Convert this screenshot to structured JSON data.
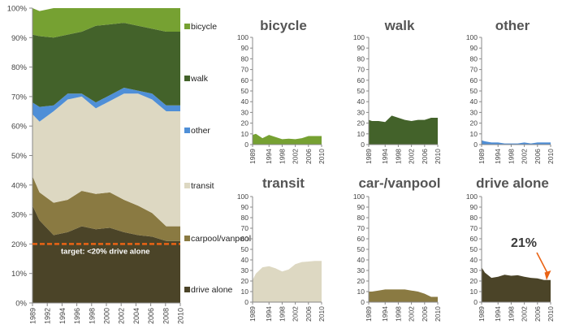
{
  "colors": {
    "bicycle": "#76a132",
    "walk": "#43622a",
    "other": "#4f8fd7",
    "transit": "#ddd8c2",
    "carpool": "#8a7a42",
    "drive_alone": "#4b4428",
    "target_line": "#ea6314",
    "arrow": "#ea6314",
    "axis": "#888888",
    "title": "#555555"
  },
  "main_chart": {
    "legend": {
      "bicycle": "bicycle",
      "walk": "walk",
      "other": "other",
      "transit": "transit",
      "carpool": "carpool/vanpool",
      "drive_alone": "drive alone"
    },
    "target_label": "target: <20% drive alone"
  },
  "annotation": {
    "value_label": "21%"
  },
  "chart_data": [
    {
      "type": "area",
      "stacked": true,
      "x": [
        1989,
        1990,
        1992,
        1994,
        1996,
        1998,
        2000,
        2002,
        2004,
        2006,
        2008,
        2010
      ],
      "x_ticks": [
        "1989",
        "1992",
        "1994",
        "1996",
        "1998",
        "2000",
        "2002",
        "2004",
        "2006",
        "2008",
        "2010"
      ],
      "y_ticks": [
        "0%",
        "10%",
        "20%",
        "30%",
        "40%",
        "50%",
        "60%",
        "70%",
        "80%",
        "90%",
        "100%"
      ],
      "ylim": [
        0,
        100
      ],
      "grid": false,
      "legend_position": "right",
      "target_line": 20,
      "series": [
        {
          "name": "drive alone",
          "key": "drive_alone",
          "values": [
            33,
            28,
            23,
            24,
            26,
            25,
            25.5,
            24,
            23,
            22.5,
            21,
            21
          ]
        },
        {
          "name": "carpool/vanpool",
          "key": "carpool",
          "values": [
            10,
            9.5,
            11,
            11,
            12,
            12,
            12,
            11,
            10,
            8,
            5,
            5
          ]
        },
        {
          "name": "transit",
          "key": "transit",
          "values": [
            21,
            24,
            31,
            34,
            32,
            29,
            31,
            36,
            38,
            38.5,
            39,
            39
          ]
        },
        {
          "name": "other",
          "key": "other",
          "values": [
            4,
            5,
            2,
            2,
            1,
            2,
            2,
            2,
            1,
            2,
            2,
            2
          ]
        },
        {
          "name": "walk",
          "key": "walk",
          "values": [
            23,
            24,
            23,
            20,
            21,
            26,
            24,
            22,
            22,
            22,
            25,
            25
          ]
        },
        {
          "name": "bicycle",
          "key": "bicycle",
          "values": [
            9,
            8.5,
            10,
            9,
            8,
            6,
            5.5,
            5,
            6,
            7,
            8,
            8
          ]
        }
      ]
    },
    {
      "type": "area",
      "title": "bicycle",
      "key": "bicycle",
      "x": [
        1989,
        1990,
        1992,
        1994,
        1996,
        1998,
        2000,
        2002,
        2004,
        2006,
        2008,
        2010
      ],
      "values": [
        9,
        10,
        6,
        9,
        7,
        5,
        5.5,
        5,
        6,
        8,
        8,
        8
      ],
      "x_ticks": [
        "1989",
        "1994",
        "1998",
        "2002",
        "2006",
        "2010"
      ],
      "y_ticks": [
        "0",
        "10",
        "20",
        "30",
        "40",
        "50",
        "60",
        "70",
        "80",
        "90",
        "100"
      ],
      "ylim": [
        0,
        100
      ]
    },
    {
      "type": "area",
      "title": "walk",
      "key": "walk",
      "x": [
        1989,
        1990,
        1992,
        1994,
        1996,
        1998,
        2000,
        2002,
        2004,
        2006,
        2008,
        2010
      ],
      "values": [
        23,
        22,
        22,
        21,
        27,
        25,
        23,
        22,
        23,
        23,
        25,
        25
      ],
      "x_ticks": [
        "1989",
        "1994",
        "1998",
        "2002",
        "2006",
        "2010"
      ],
      "y_ticks": [
        "0",
        "10",
        "20",
        "30",
        "40",
        "50",
        "60",
        "70",
        "80",
        "90",
        "100"
      ],
      "ylim": [
        0,
        100
      ]
    },
    {
      "type": "area",
      "title": "other",
      "key": "other",
      "x": [
        1989,
        1990,
        1992,
        1994,
        1996,
        1998,
        2000,
        2002,
        2004,
        2006,
        2008,
        2010
      ],
      "values": [
        4,
        3,
        2,
        2,
        1,
        1,
        1,
        2,
        1,
        2,
        2,
        2
      ],
      "x_ticks": [
        "1989",
        "1994",
        "1998",
        "2002",
        "2006",
        "2010"
      ],
      "y_ticks": [
        "0",
        "10",
        "20",
        "30",
        "40",
        "50",
        "60",
        "70",
        "80",
        "90",
        "100"
      ],
      "ylim": [
        0,
        100
      ]
    },
    {
      "type": "area",
      "title": "transit",
      "key": "transit",
      "x": [
        1989,
        1990,
        1992,
        1994,
        1996,
        1998,
        2000,
        2002,
        2004,
        2006,
        2008,
        2010
      ],
      "values": [
        21,
        27,
        33,
        34,
        32,
        29,
        31,
        36,
        38,
        38.5,
        39,
        39
      ],
      "x_ticks": [
        "1989",
        "1994",
        "1998",
        "2002",
        "2006",
        "2010"
      ],
      "y_ticks": [
        "0",
        "10",
        "20",
        "30",
        "40",
        "50",
        "60",
        "70",
        "80",
        "90",
        "100"
      ],
      "ylim": [
        0,
        100
      ]
    },
    {
      "type": "area",
      "title": "car-/vanpool",
      "key": "carpool",
      "x": [
        1989,
        1990,
        1992,
        1994,
        1996,
        1998,
        2000,
        2002,
        2004,
        2006,
        2008,
        2010
      ],
      "values": [
        10,
        10,
        11,
        12,
        12,
        12,
        12,
        11,
        10,
        8,
        5,
        5
      ],
      "x_ticks": [
        "1989",
        "1994",
        "1998",
        "2002",
        "2006",
        "2010"
      ],
      "y_ticks": [
        "0",
        "10",
        "20",
        "30",
        "40",
        "50",
        "60",
        "70",
        "80",
        "90",
        "100"
      ],
      "ylim": [
        0,
        100
      ]
    },
    {
      "type": "area",
      "title": "drive alone",
      "key": "drive_alone",
      "x": [
        1989,
        1990,
        1992,
        1994,
        1996,
        1998,
        2000,
        2002,
        2004,
        2006,
        2008,
        2010
      ],
      "values": [
        33,
        28,
        23,
        24,
        26,
        25,
        25.5,
        24,
        23,
        22.5,
        21,
        21
      ],
      "x_ticks": [
        "1989",
        "1994",
        "1998",
        "2002",
        "2006",
        "2010"
      ],
      "y_ticks": [
        "0",
        "10",
        "20",
        "30",
        "40",
        "50",
        "60",
        "70",
        "80",
        "90",
        "100"
      ],
      "ylim": [
        0,
        100
      ]
    }
  ]
}
